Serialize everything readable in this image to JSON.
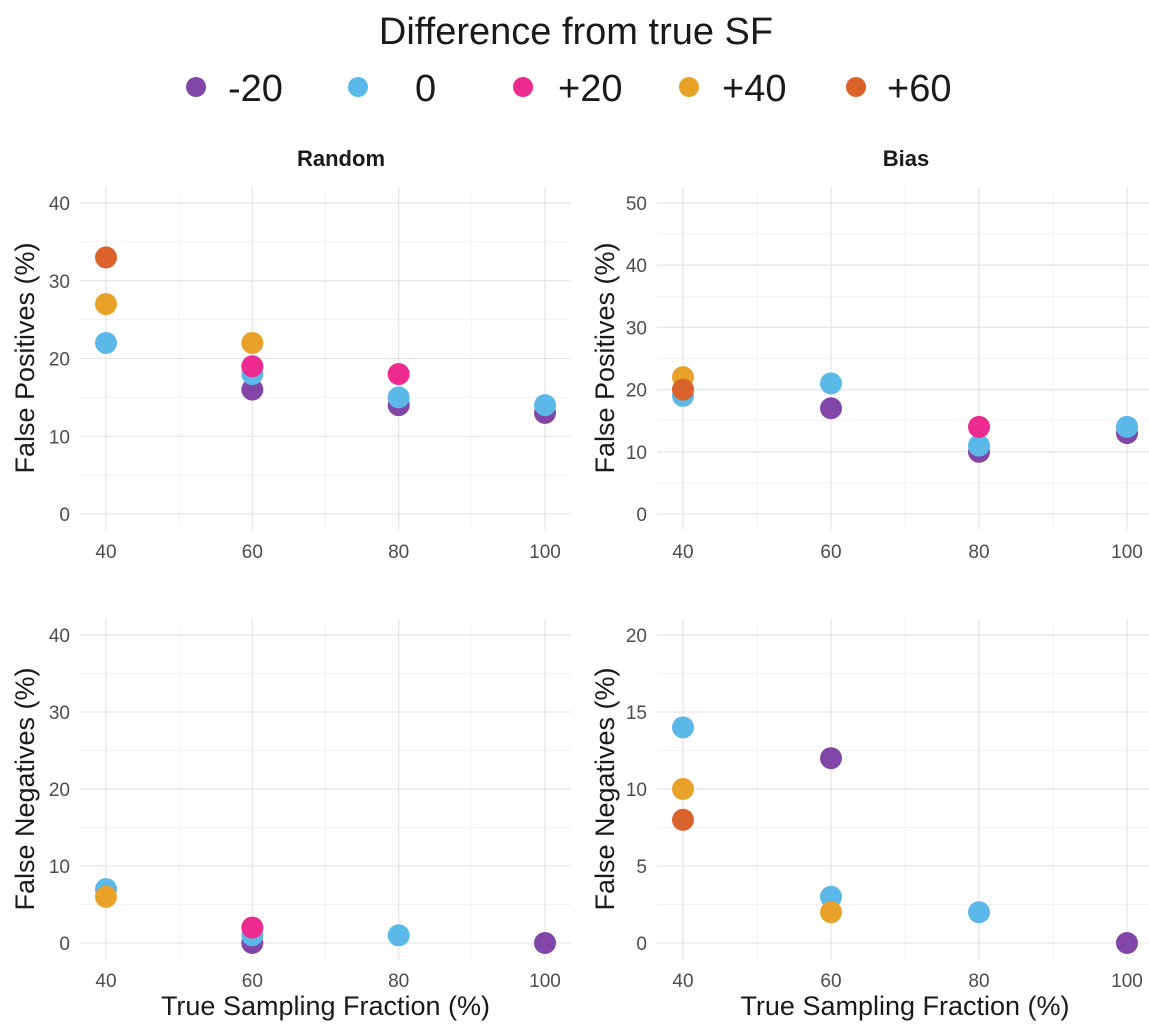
{
  "legend": {
    "title": "Difference from true SF",
    "items": [
      {
        "label": "-20",
        "color": "#8246a8"
      },
      {
        "label": "0",
        "color": "#5bb8e8"
      },
      {
        "label": "+20",
        "color": "#ec2a8f"
      },
      {
        "label": "+40",
        "color": "#e8a22a"
      },
      {
        "label": "+60",
        "color": "#d9632a"
      }
    ]
  },
  "chart_data": [
    {
      "type": "scatter",
      "title": "Random",
      "ylabel": "False Positives (%)",
      "xlabel": "",
      "xlim": [
        40,
        100
      ],
      "ylim": [
        0,
        40
      ],
      "xticks": [
        40,
        60,
        80,
        100
      ],
      "yticks": [
        0,
        10,
        20,
        30,
        40
      ],
      "grid": true,
      "series": [
        {
          "name": "-20",
          "color": "#8246a8",
          "points": [
            {
              "x": 60,
              "y": 16
            },
            {
              "x": 80,
              "y": 14
            },
            {
              "x": 100,
              "y": 13
            }
          ]
        },
        {
          "name": "0",
          "color": "#5bb8e8",
          "points": [
            {
              "x": 40,
              "y": 22
            },
            {
              "x": 60,
              "y": 18
            },
            {
              "x": 80,
              "y": 15
            },
            {
              "x": 100,
              "y": 14
            }
          ]
        },
        {
          "name": "+20",
          "color": "#ec2a8f",
          "points": [
            {
              "x": 60,
              "y": 19
            },
            {
              "x": 80,
              "y": 18
            }
          ]
        },
        {
          "name": "+40",
          "color": "#e8a22a",
          "points": [
            {
              "x": 40,
              "y": 27
            },
            {
              "x": 60,
              "y": 22
            }
          ]
        },
        {
          "name": "+60",
          "color": "#d9632a",
          "points": [
            {
              "x": 40,
              "y": 33
            }
          ]
        }
      ]
    },
    {
      "type": "scatter",
      "title": "Bias",
      "ylabel": "False Positives (%)",
      "xlabel": "",
      "xlim": [
        40,
        100
      ],
      "ylim": [
        0,
        50
      ],
      "xticks": [
        40,
        60,
        80,
        100
      ],
      "yticks": [
        0,
        10,
        20,
        30,
        40,
        50
      ],
      "grid": true,
      "series": [
        {
          "name": "-20",
          "color": "#8246a8",
          "points": [
            {
              "x": 60,
              "y": 17
            },
            {
              "x": 80,
              "y": 10
            },
            {
              "x": 100,
              "y": 13
            }
          ]
        },
        {
          "name": "0",
          "color": "#5bb8e8",
          "points": [
            {
              "x": 40,
              "y": 19
            },
            {
              "x": 60,
              "y": 21
            },
            {
              "x": 80,
              "y": 11
            },
            {
              "x": 100,
              "y": 14
            }
          ]
        },
        {
          "name": "+20",
          "color": "#ec2a8f",
          "points": [
            {
              "x": 80,
              "y": 14
            }
          ]
        },
        {
          "name": "+40",
          "color": "#e8a22a",
          "points": [
            {
              "x": 40,
              "y": 22
            }
          ]
        },
        {
          "name": "+60",
          "color": "#d9632a",
          "points": [
            {
              "x": 40,
              "y": 20
            }
          ]
        }
      ]
    },
    {
      "type": "scatter",
      "title": "",
      "ylabel": "False Negatives (%)",
      "xlabel": "True Sampling Fraction (%)",
      "xlim": [
        40,
        100
      ],
      "ylim": [
        0,
        40
      ],
      "xticks": [
        40,
        60,
        80,
        100
      ],
      "yticks": [
        0,
        10,
        20,
        30,
        40
      ],
      "grid": true,
      "series": [
        {
          "name": "-20",
          "color": "#8246a8",
          "points": [
            {
              "x": 60,
              "y": 0
            },
            {
              "x": 100,
              "y": 0
            }
          ]
        },
        {
          "name": "0",
          "color": "#5bb8e8",
          "points": [
            {
              "x": 40,
              "y": 7
            },
            {
              "x": 60,
              "y": 1
            },
            {
              "x": 80,
              "y": 1
            }
          ]
        },
        {
          "name": "+20",
          "color": "#ec2a8f",
          "points": [
            {
              "x": 60,
              "y": 2
            }
          ]
        },
        {
          "name": "+40",
          "color": "#e8a22a",
          "points": [
            {
              "x": 40,
              "y": 6
            }
          ]
        },
        {
          "name": "+60",
          "color": "#d9632a",
          "points": []
        }
      ]
    },
    {
      "type": "scatter",
      "title": "",
      "ylabel": "False Negatives (%)",
      "xlabel": "True Sampling Fraction (%)",
      "xlim": [
        40,
        100
      ],
      "ylim": [
        0,
        20
      ],
      "xticks": [
        40,
        60,
        80,
        100
      ],
      "yticks": [
        0,
        5,
        10,
        15,
        20
      ],
      "grid": true,
      "series": [
        {
          "name": "-20",
          "color": "#8246a8",
          "points": [
            {
              "x": 60,
              "y": 12
            },
            {
              "x": 100,
              "y": 0
            }
          ]
        },
        {
          "name": "0",
          "color": "#5bb8e8",
          "points": [
            {
              "x": 40,
              "y": 14
            },
            {
              "x": 60,
              "y": 3
            },
            {
              "x": 80,
              "y": 2
            }
          ]
        },
        {
          "name": "+20",
          "color": "#ec2a8f",
          "points": []
        },
        {
          "name": "+40",
          "color": "#e8a22a",
          "points": [
            {
              "x": 40,
              "y": 10
            },
            {
              "x": 60,
              "y": 2
            }
          ]
        },
        {
          "name": "+60",
          "color": "#d9632a",
          "points": [
            {
              "x": 40,
              "y": 8
            }
          ]
        }
      ]
    }
  ]
}
